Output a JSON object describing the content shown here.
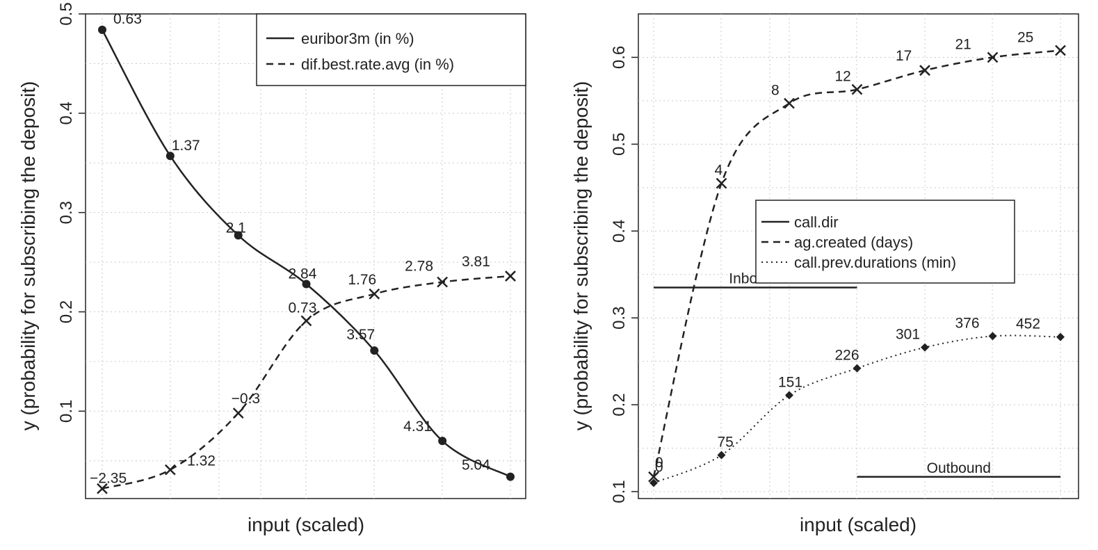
{
  "chart_data": [
    {
      "type": "line",
      "xlabel": "input (scaled)",
      "ylabel": "y (probability for subscribing the deposit)",
      "ylim": [
        0.012,
        0.5
      ],
      "yticks": [
        "0.1",
        "0.2",
        "0.3",
        "0.4",
        "0.5"
      ],
      "ytick_values": [
        0.1,
        0.2,
        0.3,
        0.4,
        0.5
      ],
      "grid": true,
      "legend_position": "top-right",
      "x": [
        0,
        1,
        2,
        3,
        4,
        5,
        6
      ],
      "series": [
        {
          "name": "euribor3m (in %)",
          "style": "solid",
          "marker": "dot",
          "values": [
            0.484,
            0.357,
            0.277,
            0.228,
            0.161,
            0.07,
            0.034
          ],
          "labels": [
            "0.63",
            "1.37",
            "2.1",
            "2.84",
            "3.57",
            "4.31",
            "5.04"
          ]
        },
        {
          "name": "dif.best.rate.avg (in %)",
          "style": "dashed",
          "marker": "cross",
          "values": [
            0.022,
            0.041,
            0.098,
            0.191,
            0.218,
            0.23,
            0.236
          ],
          "labels": [
            "−2.35",
            "−1.32",
            "−0.3",
            "0.73",
            "1.76",
            "2.78",
            "3.81"
          ]
        }
      ]
    },
    {
      "type": "line",
      "xlabel": "input (scaled)",
      "ylabel": "y (probability for subscribing the deposit)",
      "ylim": [
        0.092,
        0.65
      ],
      "yticks": [
        "0.1",
        "0.2",
        "0.3",
        "0.4",
        "0.5",
        "0.6"
      ],
      "ytick_values": [
        0.1,
        0.2,
        0.3,
        0.4,
        0.5,
        0.6
      ],
      "grid": true,
      "legend_position": "center",
      "x": [
        0,
        1,
        2,
        3,
        4,
        5,
        6
      ],
      "series": [
        {
          "name": "call.dir",
          "style": "solid",
          "marker": "none",
          "segments": [
            {
              "label": "Inbound",
              "x_start": 0,
              "x_end": 3,
              "value": 0.335
            },
            {
              "label": "Outbound",
              "x_start": 3,
              "x_end": 6,
              "value": 0.117
            }
          ]
        },
        {
          "name": "ag.created (days)",
          "style": "dashed",
          "marker": "cross",
          "values": [
            0.117,
            0.455,
            0.547,
            0.563,
            0.585,
            0.6,
            0.608
          ],
          "labels": [
            "0",
            "4",
            "8",
            "12",
            "17",
            "21",
            "25"
          ]
        },
        {
          "name": "call.prev.durations (min)",
          "style": "dotted",
          "marker": "diamond",
          "values": [
            0.11,
            0.142,
            0.211,
            0.242,
            0.266,
            0.279,
            0.278
          ],
          "labels": [
            "0",
            "75",
            "151",
            "226",
            "301",
            "376",
            "452"
          ]
        }
      ]
    }
  ]
}
